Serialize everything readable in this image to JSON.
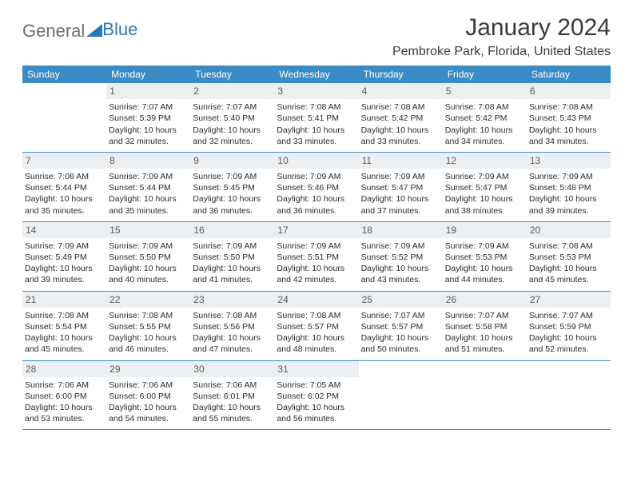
{
  "brand": {
    "part1": "General",
    "part2": "Blue"
  },
  "title": "January 2024",
  "location": "Pembroke Park, Florida, United States",
  "colors": {
    "header_bg": "#3b8cc6",
    "header_text": "#ffffff",
    "daynum_bg": "#eceff1",
    "rule": "#3b8cc6",
    "brand_gray": "#6f6f6f",
    "brand_blue": "#2878b8"
  },
  "daysOfWeek": [
    "Sunday",
    "Monday",
    "Tuesday",
    "Wednesday",
    "Thursday",
    "Friday",
    "Saturday"
  ],
  "weeks": [
    [
      null,
      {
        "n": "1",
        "sr": "7:07 AM",
        "ss": "5:39 PM",
        "dl": "10 hours and 32 minutes."
      },
      {
        "n": "2",
        "sr": "7:07 AM",
        "ss": "5:40 PM",
        "dl": "10 hours and 32 minutes."
      },
      {
        "n": "3",
        "sr": "7:08 AM",
        "ss": "5:41 PM",
        "dl": "10 hours and 33 minutes."
      },
      {
        "n": "4",
        "sr": "7:08 AM",
        "ss": "5:42 PM",
        "dl": "10 hours and 33 minutes."
      },
      {
        "n": "5",
        "sr": "7:08 AM",
        "ss": "5:42 PM",
        "dl": "10 hours and 34 minutes."
      },
      {
        "n": "6",
        "sr": "7:08 AM",
        "ss": "5:43 PM",
        "dl": "10 hours and 34 minutes."
      }
    ],
    [
      {
        "n": "7",
        "sr": "7:08 AM",
        "ss": "5:44 PM",
        "dl": "10 hours and 35 minutes."
      },
      {
        "n": "8",
        "sr": "7:09 AM",
        "ss": "5:44 PM",
        "dl": "10 hours and 35 minutes."
      },
      {
        "n": "9",
        "sr": "7:09 AM",
        "ss": "5:45 PM",
        "dl": "10 hours and 36 minutes."
      },
      {
        "n": "10",
        "sr": "7:09 AM",
        "ss": "5:46 PM",
        "dl": "10 hours and 36 minutes."
      },
      {
        "n": "11",
        "sr": "7:09 AM",
        "ss": "5:47 PM",
        "dl": "10 hours and 37 minutes."
      },
      {
        "n": "12",
        "sr": "7:09 AM",
        "ss": "5:47 PM",
        "dl": "10 hours and 38 minutes."
      },
      {
        "n": "13",
        "sr": "7:09 AM",
        "ss": "5:48 PM",
        "dl": "10 hours and 39 minutes."
      }
    ],
    [
      {
        "n": "14",
        "sr": "7:09 AM",
        "ss": "5:49 PM",
        "dl": "10 hours and 39 minutes."
      },
      {
        "n": "15",
        "sr": "7:09 AM",
        "ss": "5:50 PM",
        "dl": "10 hours and 40 minutes."
      },
      {
        "n": "16",
        "sr": "7:09 AM",
        "ss": "5:50 PM",
        "dl": "10 hours and 41 minutes."
      },
      {
        "n": "17",
        "sr": "7:09 AM",
        "ss": "5:51 PM",
        "dl": "10 hours and 42 minutes."
      },
      {
        "n": "18",
        "sr": "7:09 AM",
        "ss": "5:52 PM",
        "dl": "10 hours and 43 minutes."
      },
      {
        "n": "19",
        "sr": "7:09 AM",
        "ss": "5:53 PM",
        "dl": "10 hours and 44 minutes."
      },
      {
        "n": "20",
        "sr": "7:08 AM",
        "ss": "5:53 PM",
        "dl": "10 hours and 45 minutes."
      }
    ],
    [
      {
        "n": "21",
        "sr": "7:08 AM",
        "ss": "5:54 PM",
        "dl": "10 hours and 45 minutes."
      },
      {
        "n": "22",
        "sr": "7:08 AM",
        "ss": "5:55 PM",
        "dl": "10 hours and 46 minutes."
      },
      {
        "n": "23",
        "sr": "7:08 AM",
        "ss": "5:56 PM",
        "dl": "10 hours and 47 minutes."
      },
      {
        "n": "24",
        "sr": "7:08 AM",
        "ss": "5:57 PM",
        "dl": "10 hours and 48 minutes."
      },
      {
        "n": "25",
        "sr": "7:07 AM",
        "ss": "5:57 PM",
        "dl": "10 hours and 50 minutes."
      },
      {
        "n": "26",
        "sr": "7:07 AM",
        "ss": "5:58 PM",
        "dl": "10 hours and 51 minutes."
      },
      {
        "n": "27",
        "sr": "7:07 AM",
        "ss": "5:59 PM",
        "dl": "10 hours and 52 minutes."
      }
    ],
    [
      {
        "n": "28",
        "sr": "7:06 AM",
        "ss": "6:00 PM",
        "dl": "10 hours and 53 minutes."
      },
      {
        "n": "29",
        "sr": "7:06 AM",
        "ss": "6:00 PM",
        "dl": "10 hours and 54 minutes."
      },
      {
        "n": "30",
        "sr": "7:06 AM",
        "ss": "6:01 PM",
        "dl": "10 hours and 55 minutes."
      },
      {
        "n": "31",
        "sr": "7:05 AM",
        "ss": "6:02 PM",
        "dl": "10 hours and 56 minutes."
      },
      null,
      null,
      null
    ]
  ],
  "labels": {
    "sunrise": "Sunrise:",
    "sunset": "Sunset:",
    "daylight": "Daylight:"
  }
}
